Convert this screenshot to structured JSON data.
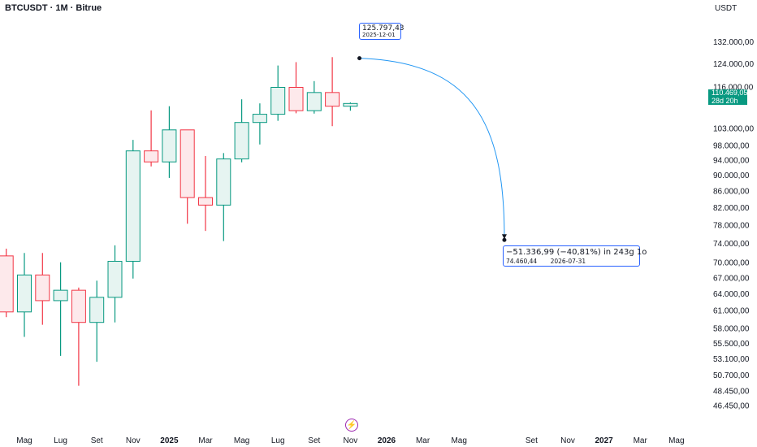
{
  "header": {
    "title": "BTCUSDT · 1M · Bitrue",
    "unit": "USDT"
  },
  "price_tag": {
    "price": "110.469,05",
    "countdown": "28d 20h",
    "color": "#089981"
  },
  "annotations": {
    "top": {
      "price": "125.797,43",
      "date": "2025-12-01"
    },
    "bottom": {
      "summary": "−51.336,99 (−40,81%) in 243g 1o",
      "price": "74.460,44",
      "date": "2026-07-31"
    }
  },
  "icons": {
    "bolt": "lightning-icon"
  },
  "colors": {
    "up": "#089981",
    "down": "#f23645",
    "up_fill": "#e6f4f1",
    "down_fill": "#fde9eb",
    "arrow": "#2196f3"
  },
  "chart_data": {
    "type": "candlestick",
    "scale": "log",
    "ylim": [
      45000,
      138000
    ],
    "y_ticks": [
      "132.000,00",
      "124.000,00",
      "116.000,00",
      "103.000,00",
      "98.000,00",
      "94.000,00",
      "90.000,00",
      "86.000,00",
      "82.000,00",
      "78.000,00",
      "74.000,00",
      "70.000,00",
      "67.000,00",
      "64.000,00",
      "61.000,00",
      "58.000,00",
      "55.500,00",
      "53.100,00",
      "50.700,00",
      "48.450,00",
      "46.450,00"
    ],
    "x_ticks": [
      {
        "label": "Mag",
        "month": "2024-05",
        "bold": false
      },
      {
        "label": "Lug",
        "month": "2024-07",
        "bold": false
      },
      {
        "label": "Set",
        "month": "2024-09",
        "bold": false
      },
      {
        "label": "Nov",
        "month": "2024-11",
        "bold": false
      },
      {
        "label": "2025",
        "month": "2025-01",
        "bold": true
      },
      {
        "label": "Mar",
        "month": "2025-03",
        "bold": false
      },
      {
        "label": "Mag",
        "month": "2025-05",
        "bold": false
      },
      {
        "label": "Lug",
        "month": "2025-07",
        "bold": false
      },
      {
        "label": "Set",
        "month": "2025-09",
        "bold": false
      },
      {
        "label": "Nov",
        "month": "2025-11",
        "bold": false
      },
      {
        "label": "2026",
        "month": "2026-01",
        "bold": true
      },
      {
        "label": "Mar",
        "month": "2026-03",
        "bold": false
      },
      {
        "label": "Mag",
        "month": "2026-05",
        "bold": false
      },
      {
        "label": "Set",
        "month": "2026-09",
        "bold": false
      },
      {
        "label": "Nov",
        "month": "2026-11",
        "bold": false
      },
      {
        "label": "2027",
        "month": "2027-01",
        "bold": true
      },
      {
        "label": "Mar",
        "month": "2027-03",
        "bold": false
      },
      {
        "label": "Mag",
        "month": "2027-05",
        "bold": false
      }
    ],
    "candles": [
      {
        "date": "2024-04",
        "open": 71300,
        "high": 72800,
        "low": 59800,
        "close": 60700
      },
      {
        "date": "2024-05",
        "open": 60700,
        "high": 71900,
        "low": 56500,
        "close": 67500
      },
      {
        "date": "2024-06",
        "open": 67500,
        "high": 71900,
        "low": 58500,
        "close": 62700
      },
      {
        "date": "2024-07",
        "open": 62700,
        "high": 70000,
        "low": 53500,
        "close": 64600
      },
      {
        "date": "2024-08",
        "open": 64600,
        "high": 65100,
        "low": 49100,
        "close": 58900
      },
      {
        "date": "2024-09",
        "open": 58900,
        "high": 66400,
        "low": 52600,
        "close": 63300
      },
      {
        "date": "2024-10",
        "open": 63300,
        "high": 73500,
        "low": 58900,
        "close": 70200
      },
      {
        "date": "2024-11",
        "open": 70200,
        "high": 99500,
        "low": 66800,
        "close": 96400
      },
      {
        "date": "2024-12",
        "open": 96400,
        "high": 108300,
        "low": 92200,
        "close": 93400
      },
      {
        "date": "2025-01",
        "open": 93400,
        "high": 109600,
        "low": 89200,
        "close": 102400
      },
      {
        "date": "2025-02",
        "open": 102400,
        "high": 102400,
        "low": 78200,
        "close": 84300
      },
      {
        "date": "2025-03",
        "open": 84300,
        "high": 95000,
        "low": 76600,
        "close": 82500
      },
      {
        "date": "2025-04",
        "open": 82500,
        "high": 95800,
        "low": 74400,
        "close": 94200
      },
      {
        "date": "2025-05",
        "open": 94200,
        "high": 111800,
        "low": 93300,
        "close": 104600
      },
      {
        "date": "2025-06",
        "open": 104600,
        "high": 110500,
        "low": 98200,
        "close": 107100
      },
      {
        "date": "2025-07",
        "open": 107100,
        "high": 123200,
        "low": 105100,
        "close": 115700
      },
      {
        "date": "2025-08",
        "open": 115700,
        "high": 124400,
        "low": 107400,
        "close": 108200
      },
      {
        "date": "2025-09",
        "open": 108200,
        "high": 117800,
        "low": 107300,
        "close": 114000
      },
      {
        "date": "2025-10",
        "open": 114000,
        "high": 126200,
        "low": 103500,
        "close": 109600
      },
      {
        "date": "2025-11",
        "open": 109600,
        "high": 110800,
        "low": 108200,
        "close": 110469
      }
    ],
    "projection": {
      "from": {
        "date": "2025-12-01",
        "price": 125797.43
      },
      "to": {
        "date": "2026-07-31",
        "price": 74460.44
      }
    }
  }
}
